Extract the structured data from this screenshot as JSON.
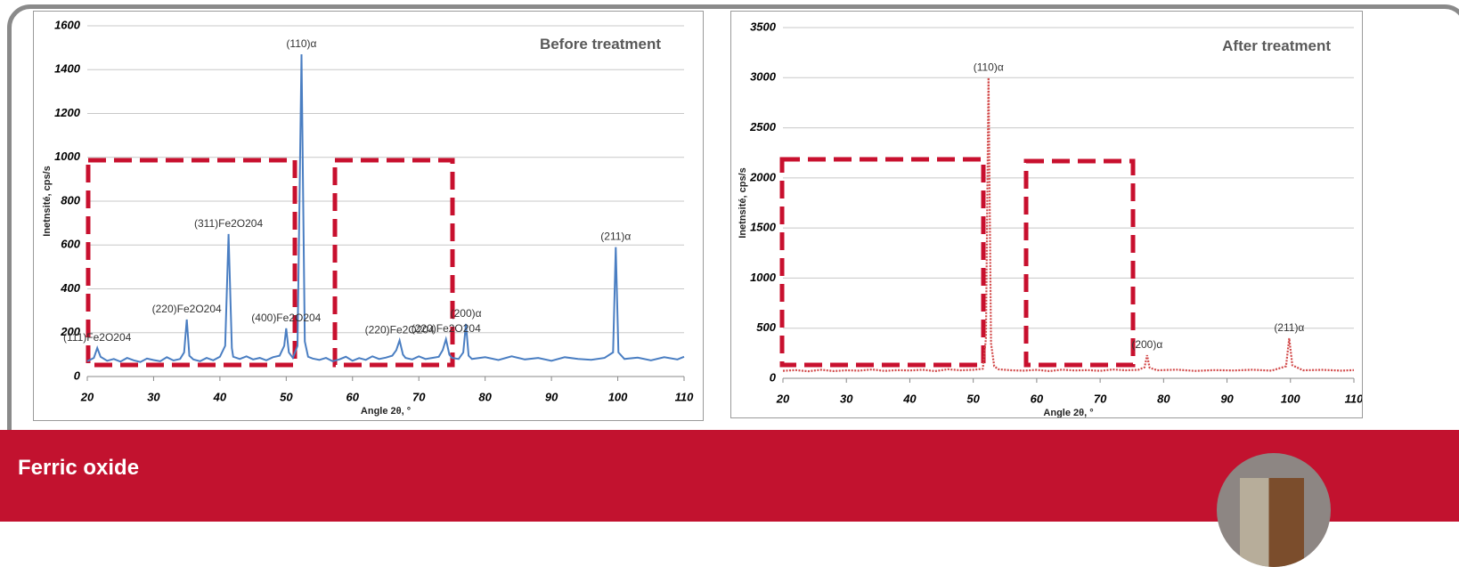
{
  "chart_data": [
    {
      "type": "line",
      "title": "Before treatment",
      "x_label": "Angle 2θ, °",
      "y_label": "Inetnsité, cps/s",
      "xlim": [
        20,
        110
      ],
      "xticks": [
        20,
        30,
        40,
        50,
        60,
        70,
        80,
        90,
        100,
        110
      ],
      "ylim": [
        0,
        1600
      ],
      "yticks": [
        0,
        200,
        400,
        600,
        800,
        1000,
        1200,
        1400,
        1600
      ],
      "grid": true,
      "series": [
        {
          "color": "#4a7ec2",
          "x": [
            20,
            21,
            21.5,
            22,
            23,
            24,
            25,
            26,
            27,
            28,
            29,
            30,
            31,
            32,
            33,
            34,
            34.6,
            35,
            35.4,
            36,
            37,
            38,
            39,
            40,
            40.8,
            41.3,
            41.8,
            42,
            43,
            44,
            45,
            46,
            47,
            48,
            49,
            49.7,
            50,
            50.4,
            51,
            51.7,
            52.3,
            52.8,
            53.3,
            54,
            55,
            56,
            57,
            58,
            59,
            60,
            61,
            62,
            63,
            64,
            65,
            66,
            66.6,
            67.1,
            67.6,
            68,
            69,
            70,
            71,
            72,
            73,
            73.6,
            74.1,
            74.6,
            75,
            76,
            76.7,
            77.1,
            77.5,
            78,
            80,
            82,
            84,
            86,
            88,
            90,
            92,
            94,
            96,
            98,
            99.3,
            99.7,
            100.1,
            101,
            103,
            105,
            107,
            109,
            110
          ],
          "values": [
            70,
            85,
            130,
            90,
            72,
            80,
            68,
            85,
            74,
            66,
            82,
            75,
            70,
            88,
            73,
            80,
            110,
            260,
            95,
            78,
            70,
            85,
            74,
            90,
            140,
            650,
            130,
            90,
            80,
            92,
            78,
            85,
            74,
            88,
            95,
            140,
            220,
            110,
            85,
            140,
            1470,
            160,
            90,
            82,
            76,
            85,
            70,
            78,
            90,
            72,
            84,
            76,
            92,
            80,
            86,
            95,
            120,
            165,
            100,
            85,
            78,
            92,
            80,
            85,
            90,
            120,
            170,
            100,
            85,
            80,
            110,
            240,
            95,
            80,
            88,
            75,
            92,
            78,
            85,
            72,
            88,
            80,
            76,
            85,
            110,
            590,
            110,
            80,
            86,
            74,
            88,
            78,
            90
          ]
        }
      ],
      "annotations": [
        {
          "text": "(111)Fe2O204",
          "x": 21.5,
          "y": 130
        },
        {
          "text": "(220)Fe2O204",
          "x": 35,
          "y": 260
        },
        {
          "text": "(311)Fe2O204",
          "x": 41.3,
          "y": 650
        },
        {
          "text": "(400)Fe2O204",
          "x": 50,
          "y": 220
        },
        {
          "text": "(110)α",
          "x": 52.3,
          "y": 1470
        },
        {
          "text": "(220)Fe2O204",
          "x": 67.1,
          "y": 165
        },
        {
          "text": "(220)Fe2O204",
          "x": 74.1,
          "y": 170
        },
        {
          "text": "(200)α",
          "x": 77.1,
          "y": 240
        },
        {
          "text": "(211)α",
          "x": 99.7,
          "y": 590
        }
      ]
    },
    {
      "type": "line",
      "title": "After treatment",
      "x_label": "Angle 2θ, °",
      "y_label": "Inetnsité, cps/s",
      "xlim": [
        20,
        110
      ],
      "xticks": [
        20,
        30,
        40,
        50,
        60,
        70,
        80,
        90,
        100,
        110
      ],
      "ylim": [
        0,
        3500
      ],
      "yticks": [
        0,
        500,
        1000,
        1500,
        2000,
        2500,
        3000,
        3500
      ],
      "grid": true,
      "series": [
        {
          "color": "#d24a4a",
          "x": [
            20,
            22,
            24,
            26,
            28,
            30,
            32,
            34,
            36,
            38,
            40,
            42,
            44,
            46,
            48,
            50,
            51.5,
            52,
            52.4,
            52.8,
            53.3,
            54,
            56,
            58,
            60,
            62,
            64,
            66,
            68,
            70,
            72,
            74,
            76,
            77,
            77.4,
            77.8,
            79,
            82,
            85,
            88,
            91,
            94,
            97,
            99.3,
            99.8,
            100.3,
            102,
            105,
            108,
            110
          ],
          "values": [
            75,
            82,
            70,
            85,
            72,
            80,
            76,
            88,
            74,
            82,
            78,
            85,
            72,
            90,
            80,
            84,
            95,
            400,
            3000,
            350,
            120,
            90,
            80,
            76,
            84,
            72,
            86,
            78,
            82,
            75,
            88,
            80,
            84,
            110,
            230,
            105,
            80,
            86,
            74,
            82,
            78,
            85,
            76,
            120,
            400,
            130,
            80,
            84,
            76,
            82
          ]
        }
      ],
      "annotations": [
        {
          "text": "(110)α",
          "x": 52.4,
          "y": 3000
        },
        {
          "text": "(200)α",
          "x": 77.4,
          "y": 230
        },
        {
          "text": "(211)α",
          "x": 99.8,
          "y": 400
        }
      ]
    }
  ],
  "footer": {
    "title": "Ferric oxide"
  }
}
